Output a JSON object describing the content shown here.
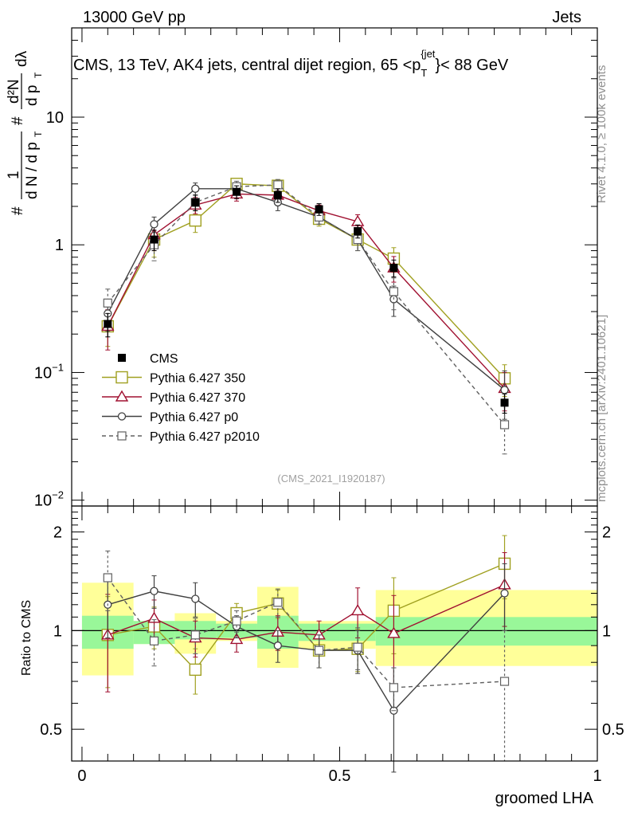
{
  "header": {
    "left": "13000 GeV pp",
    "right": "Jets",
    "rivet": "Rivet 4.1.0, ≥ 100k events",
    "mcplots": "mcplots.cern.ch [arXiv:2401.10621]"
  },
  "chart_data": [
    {
      "type": "line",
      "name": "main-panel",
      "title": "CMS, 13 TeV, AK4 jets, central dijet region, 65 <p_T^{jet}< 88 GeV",
      "title_parts": {
        "main": "CMS, 13 TeV, AK4 jets, central dijet region, 65 <p",
        "sub": "T",
        "sup": "{jet",
        "tail": "}< 88 GeV"
      },
      "ylabel": "1/N dN/dp_T dλ (# / # d p_T d²N / d p_T dλ)",
      "ylabel_parts": {
        "frac1_num": "1",
        "frac1_den": "d N / d p",
        "frac2_num": "d²N",
        "frac2_den": "d p",
        "sub": "T",
        "tail": "dλ",
        "hash": "#"
      },
      "yscale": "log",
      "ylim": [
        0.009,
        50
      ],
      "xlim": [
        -0.02,
        1.0
      ],
      "yticklabels": [
        {
          "value": 0.01,
          "base": "10",
          "exp": "−2"
        },
        {
          "value": 0.1,
          "base": "10",
          "exp": "−1"
        },
        {
          "value": 1,
          "base": "1",
          "exp": ""
        },
        {
          "value": 10,
          "base": "10",
          "exp": ""
        }
      ],
      "watermark": "(CMS_2021_I1920187)",
      "x": [
        0.05,
        0.14,
        0.22,
        0.3,
        0.38,
        0.46,
        0.535,
        0.605,
        0.82
      ],
      "bin_edges": [
        0.0,
        0.1,
        0.18,
        0.26,
        0.34,
        0.42,
        0.5,
        0.57,
        0.64,
        1.0
      ],
      "series": [
        {
          "name": "CMS",
          "style": "data",
          "color": "#000000",
          "values": [
            0.24,
            1.1,
            2.15,
            2.6,
            2.45,
            1.9,
            1.28,
            0.66,
            0.058
          ],
          "err": [
            0.05,
            0.2,
            0.3,
            0.3,
            0.3,
            0.2,
            0.15,
            0.1,
            0.01
          ]
        },
        {
          "name": "Pythia 6.427 350",
          "style": "square-open",
          "color": "#a0a020",
          "values": [
            0.23,
            1.1,
            1.55,
            3.0,
            2.9,
            1.6,
            1.1,
            0.78,
            0.09
          ],
          "err": [
            0.07,
            0.3,
            0.3,
            0.3,
            0.3,
            0.2,
            0.2,
            0.17,
            0.025
          ]
        },
        {
          "name": "Pythia 6.427 370",
          "style": "triangle-open",
          "color": "#a01030",
          "values": [
            0.23,
            1.2,
            2.05,
            2.5,
            2.45,
            1.85,
            1.52,
            0.66,
            0.075
          ],
          "err": [
            0.08,
            0.3,
            0.3,
            0.3,
            0.3,
            0.2,
            0.2,
            0.15,
            0.025
          ]
        },
        {
          "name": "Pythia 6.427 p0",
          "style": "circle-open",
          "color": "#404040",
          "values": [
            0.29,
            1.45,
            2.75,
            2.75,
            2.15,
            1.65,
            1.1,
            0.375,
            0.073
          ],
          "err": [
            0.08,
            0.2,
            0.3,
            0.3,
            0.3,
            0.2,
            0.2,
            0.1,
            0.03
          ]
        },
        {
          "name": "Pythia 6.427 p2010",
          "style": "square-dashed",
          "color": "#606060",
          "values": [
            0.35,
            1.0,
            2.15,
            2.85,
            2.95,
            1.65,
            1.1,
            0.43,
            0.039
          ],
          "err": [
            0.1,
            0.25,
            0.3,
            0.3,
            0.3,
            0.2,
            0.2,
            0.12,
            0.016
          ]
        }
      ],
      "legend_position": "center-left"
    },
    {
      "type": "line",
      "name": "ratio-panel",
      "ylabel": "Ratio to CMS",
      "xlabel": "groomed LHA",
      "yscale": "log",
      "ylim": [
        0.4,
        2.4
      ],
      "xlim": [
        -0.02,
        1.0
      ],
      "yticklabels": [
        {
          "value": 0.5,
          "text": "0.5"
        },
        {
          "value": 1,
          "text": "1"
        },
        {
          "value": 2,
          "text": "2"
        }
      ],
      "xticklabels": [
        {
          "value": 0,
          "text": "0"
        },
        {
          "value": 0.5,
          "text": "0.5"
        },
        {
          "value": 1,
          "text": "1"
        }
      ],
      "bands": [
        {
          "x0": 0.0,
          "x1": 0.1,
          "g_lo": 0.88,
          "g_hi": 1.11,
          "y_lo": 0.73,
          "y_hi": 1.4
        },
        {
          "x0": 0.1,
          "x1": 0.18,
          "g_lo": 0.91,
          "g_hi": 1.07,
          "y_lo": 0.91,
          "y_hi": 1.07
        },
        {
          "x0": 0.18,
          "x1": 0.26,
          "g_lo": 0.94,
          "g_hi": 1.07,
          "y_lo": 0.85,
          "y_hi": 1.13
        },
        {
          "x0": 0.26,
          "x1": 0.34,
          "g_lo": 0.95,
          "g_hi": 1.05,
          "y_lo": 0.93,
          "y_hi": 1.07
        },
        {
          "x0": 0.34,
          "x1": 0.42,
          "g_lo": 0.88,
          "g_hi": 1.11,
          "y_lo": 0.77,
          "y_hi": 1.36
        },
        {
          "x0": 0.42,
          "x1": 0.5,
          "g_lo": 0.93,
          "g_hi": 1.05,
          "y_lo": 0.88,
          "y_hi": 1.07
        },
        {
          "x0": 0.5,
          "x1": 0.57,
          "g_lo": 0.93,
          "g_hi": 1.05,
          "y_lo": 0.88,
          "y_hi": 1.07
        },
        {
          "x0": 0.57,
          "x1": 1.0,
          "g_lo": 0.9,
          "g_hi": 1.1,
          "y_lo": 0.78,
          "y_hi": 1.33
        }
      ],
      "series": [
        {
          "name": "Pythia 6.427 350",
          "style": "square-open",
          "color": "#a0a020",
          "values": [
            0.97,
            1.03,
            0.76,
            1.13,
            1.21,
            0.87,
            0.88,
            1.15,
            1.6
          ],
          "err": [
            0.3,
            0.15,
            0.12,
            0.08,
            0.12,
            0.1,
            0.13,
            0.3,
            0.35
          ]
        },
        {
          "name": "Pythia 6.427 370",
          "style": "triangle-open",
          "color": "#a01030",
          "values": [
            0.97,
            1.09,
            0.95,
            0.94,
            0.99,
            0.97,
            1.15,
            0.98,
            1.38
          ],
          "err": [
            0.32,
            0.15,
            0.12,
            0.08,
            0.12,
            0.1,
            0.2,
            0.3,
            0.35
          ]
        },
        {
          "name": "Pythia 6.427 p0",
          "style": "circle-open",
          "color": "#404040",
          "values": [
            1.2,
            1.32,
            1.25,
            1.03,
            0.9,
            0.87,
            0.87,
            0.57,
            1.3
          ],
          "err": [
            0.25,
            0.15,
            0.15,
            0.08,
            0.1,
            0.1,
            0.13,
            0.2,
            0.3
          ]
        },
        {
          "name": "Pythia 6.427 p2010",
          "style": "square-dashed",
          "color": "#606060",
          "values": [
            1.45,
            0.93,
            0.97,
            1.07,
            1.22,
            0.87,
            0.89,
            0.67,
            0.7
          ],
          "err": [
            0.3,
            0.15,
            0.12,
            0.08,
            0.12,
            0.1,
            0.13,
            0.1,
            0.3
          ]
        }
      ]
    }
  ],
  "colors": {
    "band_inner": "#99f799",
    "band_outer": "#ffff99"
  }
}
